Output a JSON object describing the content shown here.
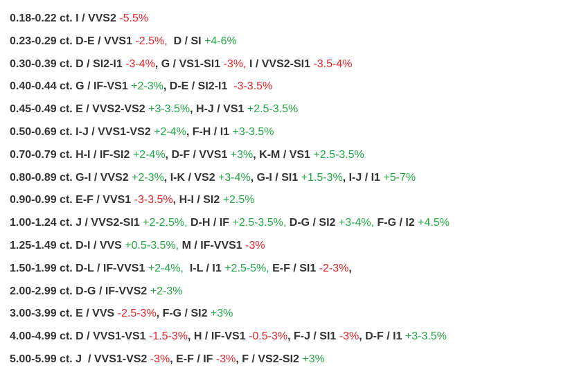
{
  "colors": {
    "text": "#333333",
    "negative": "#e8232a",
    "positive": "#22a845"
  },
  "rows": [
    [
      {
        "t": "0.18-0.22 ct. I / VVS2 ",
        "c": "text"
      },
      {
        "t": "-5.5%",
        "c": "neg"
      }
    ],
    [
      {
        "t": "0.23-0.29 ct. D-E / VVS1 ",
        "c": "text"
      },
      {
        "t": "-2.5%,",
        "c": "neg"
      },
      {
        "t": "  D / SI ",
        "c": "text"
      },
      {
        "t": "+4-6%",
        "c": "pos"
      }
    ],
    [
      {
        "t": "0.30-0.39 ct. D / SI2-I1 ",
        "c": "text"
      },
      {
        "t": "-3-4%",
        "c": "neg"
      },
      {
        "t": ", G / VS1-SI1 ",
        "c": "text"
      },
      {
        "t": "-3%,",
        "c": "neg"
      },
      {
        "t": " I / VVS2-SI1 ",
        "c": "text"
      },
      {
        "t": "-3.5-4%",
        "c": "neg"
      }
    ],
    [
      {
        "t": "0.40-0.44 ct. G / IF-VS1 ",
        "c": "text"
      },
      {
        "t": "+2-3%",
        "c": "pos"
      },
      {
        "t": ", D-E / SI2-I1  ",
        "c": "text"
      },
      {
        "t": "-3-3.5%",
        "c": "neg"
      }
    ],
    [
      {
        "t": "0.45-0.49 ct. E / VVS2-VS2 ",
        "c": "text"
      },
      {
        "t": "+3-3.5%",
        "c": "pos"
      },
      {
        "t": ", H-J / VS1 ",
        "c": "text"
      },
      {
        "t": "+2.5-3.5%",
        "c": "pos"
      }
    ],
    [
      {
        "t": "0.50-0.69 ct. I-J / VVS1-VS2 ",
        "c": "text"
      },
      {
        "t": "+2-4%",
        "c": "pos"
      },
      {
        "t": ", F-H / I1 ",
        "c": "text"
      },
      {
        "t": "+3-3.5%",
        "c": "pos"
      }
    ],
    [
      {
        "t": "0.70-0.79 ct. H-I / IF-SI2 ",
        "c": "text"
      },
      {
        "t": "+2-4%",
        "c": "pos"
      },
      {
        "t": ", D-F / VVS1 ",
        "c": "text"
      },
      {
        "t": "+3%",
        "c": "pos"
      },
      {
        "t": ", K-M / VS1 ",
        "c": "text"
      },
      {
        "t": "+2.5-3.5%",
        "c": "pos"
      }
    ],
    [
      {
        "t": "0.80-0.89 ct. G-I / VVS2 ",
        "c": "text"
      },
      {
        "t": "+2-3%",
        "c": "pos"
      },
      {
        "t": ", I-K / VS2 ",
        "c": "text"
      },
      {
        "t": "+3-4%",
        "c": "pos"
      },
      {
        "t": ", G-I / SI1 ",
        "c": "text"
      },
      {
        "t": "+1.5-3%",
        "c": "pos"
      },
      {
        "t": ", I-J / I1 ",
        "c": "text"
      },
      {
        "t": "+5-7%",
        "c": "pos"
      }
    ],
    [
      {
        "t": "0.90-0.99 ct. E-F / VVS1 ",
        "c": "text"
      },
      {
        "t": "-3-3.5%",
        "c": "neg"
      },
      {
        "t": ", H-I / SI2 ",
        "c": "text"
      },
      {
        "t": "+2.5%",
        "c": "pos"
      }
    ],
    [
      {
        "t": "1.00-1.24 ct. J / VVS2-SI1 ",
        "c": "text"
      },
      {
        "t": "+2-2.5%,",
        "c": "pos"
      },
      {
        "t": " D-H / IF ",
        "c": "text"
      },
      {
        "t": "+2.5-3.5%,",
        "c": "pos"
      },
      {
        "t": " D-G / SI2 ",
        "c": "text"
      },
      {
        "t": "+3-4%,",
        "c": "pos"
      },
      {
        "t": " F-G / I2 ",
        "c": "text"
      },
      {
        "t": "+4.5%",
        "c": "pos"
      }
    ],
    [
      {
        "t": "1.25-1.49 ct. D-I / VVS ",
        "c": "text"
      },
      {
        "t": "+0.5-3.5%,",
        "c": "pos"
      },
      {
        "t": " M / IF-VVS1 ",
        "c": "text"
      },
      {
        "t": "-3%",
        "c": "neg"
      }
    ],
    [
      {
        "t": "1.50-1.99 ct. D-L / IF-VVS1 ",
        "c": "text"
      },
      {
        "t": "+2-4%,",
        "c": "pos"
      },
      {
        "t": "  I-L / I1 ",
        "c": "text"
      },
      {
        "t": "+2.5-5%,",
        "c": "pos"
      },
      {
        "t": " E-F / SI1 ",
        "c": "text"
      },
      {
        "t": "-2-3%",
        "c": "neg"
      },
      {
        "t": ",",
        "c": "text"
      }
    ],
    [
      {
        "t": "2.00-2.99 ct. D-G / IF-VVS2 ",
        "c": "text"
      },
      {
        "t": "+2-3%",
        "c": "pos"
      }
    ],
    [
      {
        "t": "3.00-3.99 ct. E / VVS ",
        "c": "text"
      },
      {
        "t": "-2.5-3%",
        "c": "neg"
      },
      {
        "t": ", F-G / SI2 ",
        "c": "text"
      },
      {
        "t": "+3%",
        "c": "pos"
      }
    ],
    [
      {
        "t": "4.00-4.99 ct. D / VVS1-VS1 ",
        "c": "text"
      },
      {
        "t": "-1.5-3%",
        "c": "neg"
      },
      {
        "t": ", H / IF-VS1 ",
        "c": "text"
      },
      {
        "t": "-0.5-3%",
        "c": "neg"
      },
      {
        "t": ", F-J / SI1 ",
        "c": "text"
      },
      {
        "t": "-3%",
        "c": "neg"
      },
      {
        "t": ", D-F / I1 ",
        "c": "text"
      },
      {
        "t": "+3-3.5%",
        "c": "pos"
      }
    ],
    [
      {
        "t": "5.00-5.99 ct. J  / VVS1-VS2 ",
        "c": "text"
      },
      {
        "t": "-3%",
        "c": "neg"
      },
      {
        "t": ", E-F / IF ",
        "c": "text"
      },
      {
        "t": "-3%",
        "c": "neg"
      },
      {
        "t": ", F / VS2-SI2 ",
        "c": "text"
      },
      {
        "t": "+3%",
        "c": "pos"
      }
    ]
  ]
}
